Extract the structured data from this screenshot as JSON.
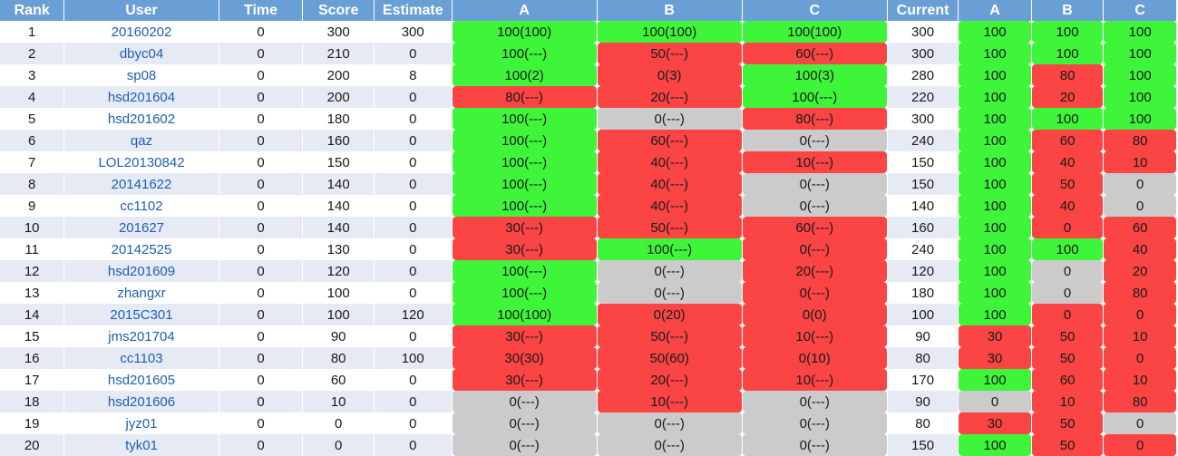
{
  "headers": {
    "rank": "Rank",
    "user": "User",
    "time": "Time",
    "score": "Score",
    "estimate": "Estimate",
    "a": "A",
    "b": "B",
    "c": "C",
    "current": "Current",
    "ca": "A",
    "cb": "B",
    "cc": "C"
  },
  "status_colors": {
    "green": "#3ef53a",
    "red": "#fb4444",
    "gray": "#cbcbcb",
    "header": "#6a9fd6",
    "link": "#1f5fb0"
  },
  "rows": [
    {
      "rank": "1",
      "user": "20160202",
      "time": "0",
      "score": "300",
      "estimate": "300",
      "a": "100(100)",
      "a_s": "green",
      "b": "100(100)",
      "b_s": "green",
      "c": "100(100)",
      "c_s": "green",
      "current": "300",
      "ca": "100",
      "ca_s": "green",
      "cb": "100",
      "cb_s": "green",
      "cc": "100",
      "cc_s": "green"
    },
    {
      "rank": "2",
      "user": "dbyc04",
      "time": "0",
      "score": "210",
      "estimate": "0",
      "a": "100(---)",
      "a_s": "green",
      "b": "50(---)",
      "b_s": "red",
      "c": "60(---)",
      "c_s": "red",
      "current": "300",
      "ca": "100",
      "ca_s": "green",
      "cb": "100",
      "cb_s": "green",
      "cc": "100",
      "cc_s": "green"
    },
    {
      "rank": "3",
      "user": "sp08",
      "time": "0",
      "score": "200",
      "estimate": "8",
      "a": "100(2)",
      "a_s": "green",
      "b": "0(3)",
      "b_s": "red",
      "c": "100(3)",
      "c_s": "green",
      "current": "280",
      "ca": "100",
      "ca_s": "green",
      "cb": "80",
      "cb_s": "red",
      "cc": "100",
      "cc_s": "green"
    },
    {
      "rank": "4",
      "user": "hsd201604",
      "time": "0",
      "score": "200",
      "estimate": "0",
      "a": "80(---)",
      "a_s": "red",
      "b": "20(---)",
      "b_s": "red",
      "c": "100(---)",
      "c_s": "green",
      "current": "220",
      "ca": "100",
      "ca_s": "green",
      "cb": "20",
      "cb_s": "red",
      "cc": "100",
      "cc_s": "green"
    },
    {
      "rank": "5",
      "user": "hsd201602",
      "time": "0",
      "score": "180",
      "estimate": "0",
      "a": "100(---)",
      "a_s": "green",
      "b": "0(---)",
      "b_s": "gray",
      "c": "80(---)",
      "c_s": "red",
      "current": "300",
      "ca": "100",
      "ca_s": "green",
      "cb": "100",
      "cb_s": "green",
      "cc": "100",
      "cc_s": "green"
    },
    {
      "rank": "6",
      "user": "qaz",
      "time": "0",
      "score": "160",
      "estimate": "0",
      "a": "100(---)",
      "a_s": "green",
      "b": "60(---)",
      "b_s": "red",
      "c": "0(---)",
      "c_s": "gray",
      "current": "240",
      "ca": "100",
      "ca_s": "green",
      "cb": "60",
      "cb_s": "red",
      "cc": "80",
      "cc_s": "red"
    },
    {
      "rank": "7",
      "user": "LOL20130842",
      "time": "0",
      "score": "150",
      "estimate": "0",
      "a": "100(---)",
      "a_s": "green",
      "b": "40(---)",
      "b_s": "red",
      "c": "10(---)",
      "c_s": "red",
      "current": "150",
      "ca": "100",
      "ca_s": "green",
      "cb": "40",
      "cb_s": "red",
      "cc": "10",
      "cc_s": "red"
    },
    {
      "rank": "8",
      "user": "20141622",
      "time": "0",
      "score": "140",
      "estimate": "0",
      "a": "100(---)",
      "a_s": "green",
      "b": "40(---)",
      "b_s": "red",
      "c": "0(---)",
      "c_s": "gray",
      "current": "150",
      "ca": "100",
      "ca_s": "green",
      "cb": "50",
      "cb_s": "red",
      "cc": "0",
      "cc_s": "gray"
    },
    {
      "rank": "9",
      "user": "cc1102",
      "time": "0",
      "score": "140",
      "estimate": "0",
      "a": "100(---)",
      "a_s": "green",
      "b": "40(---)",
      "b_s": "red",
      "c": "0(---)",
      "c_s": "gray",
      "current": "140",
      "ca": "100",
      "ca_s": "green",
      "cb": "40",
      "cb_s": "red",
      "cc": "0",
      "cc_s": "gray"
    },
    {
      "rank": "10",
      "user": "201627",
      "time": "0",
      "score": "140",
      "estimate": "0",
      "a": "30(---)",
      "a_s": "red",
      "b": "50(---)",
      "b_s": "red",
      "c": "60(---)",
      "c_s": "red",
      "current": "160",
      "ca": "100",
      "ca_s": "green",
      "cb": "0",
      "cb_s": "red",
      "cc": "60",
      "cc_s": "red"
    },
    {
      "rank": "11",
      "user": "20142525",
      "time": "0",
      "score": "130",
      "estimate": "0",
      "a": "30(---)",
      "a_s": "red",
      "b": "100(---)",
      "b_s": "green",
      "c": "0(---)",
      "c_s": "red",
      "current": "240",
      "ca": "100",
      "ca_s": "green",
      "cb": "100",
      "cb_s": "green",
      "cc": "40",
      "cc_s": "red"
    },
    {
      "rank": "12",
      "user": "hsd201609",
      "time": "0",
      "score": "120",
      "estimate": "0",
      "a": "100(---)",
      "a_s": "green",
      "b": "0(---)",
      "b_s": "gray",
      "c": "20(---)",
      "c_s": "red",
      "current": "120",
      "ca": "100",
      "ca_s": "green",
      "cb": "0",
      "cb_s": "gray",
      "cc": "20",
      "cc_s": "red"
    },
    {
      "rank": "13",
      "user": "zhangxr",
      "time": "0",
      "score": "100",
      "estimate": "0",
      "a": "100(---)",
      "a_s": "green",
      "b": "0(---)",
      "b_s": "gray",
      "c": "0(---)",
      "c_s": "red",
      "current": "180",
      "ca": "100",
      "ca_s": "green",
      "cb": "0",
      "cb_s": "gray",
      "cc": "80",
      "cc_s": "red"
    },
    {
      "rank": "14",
      "user": "2015C301",
      "time": "0",
      "score": "100",
      "estimate": "120",
      "a": "100(100)",
      "a_s": "green",
      "b": "0(20)",
      "b_s": "red",
      "c": "0(0)",
      "c_s": "red",
      "current": "100",
      "ca": "100",
      "ca_s": "green",
      "cb": "0",
      "cb_s": "red",
      "cc": "0",
      "cc_s": "red"
    },
    {
      "rank": "15",
      "user": "jms201704",
      "time": "0",
      "score": "90",
      "estimate": "0",
      "a": "30(---)",
      "a_s": "red",
      "b": "50(---)",
      "b_s": "red",
      "c": "10(---)",
      "c_s": "red",
      "current": "90",
      "ca": "30",
      "ca_s": "red",
      "cb": "50",
      "cb_s": "red",
      "cc": "10",
      "cc_s": "red"
    },
    {
      "rank": "16",
      "user": "cc1103",
      "time": "0",
      "score": "80",
      "estimate": "100",
      "a": "30(30)",
      "a_s": "red",
      "b": "50(60)",
      "b_s": "red",
      "c": "0(10)",
      "c_s": "red",
      "current": "80",
      "ca": "30",
      "ca_s": "red",
      "cb": "50",
      "cb_s": "red",
      "cc": "0",
      "cc_s": "red"
    },
    {
      "rank": "17",
      "user": "hsd201605",
      "time": "0",
      "score": "60",
      "estimate": "0",
      "a": "30(---)",
      "a_s": "red",
      "b": "20(---)",
      "b_s": "red",
      "c": "10(---)",
      "c_s": "red",
      "current": "170",
      "ca": "100",
      "ca_s": "green",
      "cb": "60",
      "cb_s": "red",
      "cc": "10",
      "cc_s": "red"
    },
    {
      "rank": "18",
      "user": "hsd201606",
      "time": "0",
      "score": "10",
      "estimate": "0",
      "a": "0(---)",
      "a_s": "gray",
      "b": "10(---)",
      "b_s": "red",
      "c": "0(---)",
      "c_s": "gray",
      "current": "90",
      "ca": "0",
      "ca_s": "gray",
      "cb": "10",
      "cb_s": "red",
      "cc": "80",
      "cc_s": "red"
    },
    {
      "rank": "19",
      "user": "jyz01",
      "time": "0",
      "score": "0",
      "estimate": "0",
      "a": "0(---)",
      "a_s": "gray",
      "b": "0(---)",
      "b_s": "gray",
      "c": "0(---)",
      "c_s": "gray",
      "current": "80",
      "ca": "30",
      "ca_s": "red",
      "cb": "50",
      "cb_s": "red",
      "cc": "0",
      "cc_s": "gray"
    },
    {
      "rank": "20",
      "user": "tyk01",
      "time": "0",
      "score": "0",
      "estimate": "0",
      "a": "0(---)",
      "a_s": "gray",
      "b": "0(---)",
      "b_s": "gray",
      "c": "0(---)",
      "c_s": "gray",
      "current": "150",
      "ca": "100",
      "ca_s": "green",
      "cb": "50",
      "cb_s": "red",
      "cc": "0",
      "cc_s": "red"
    }
  ]
}
